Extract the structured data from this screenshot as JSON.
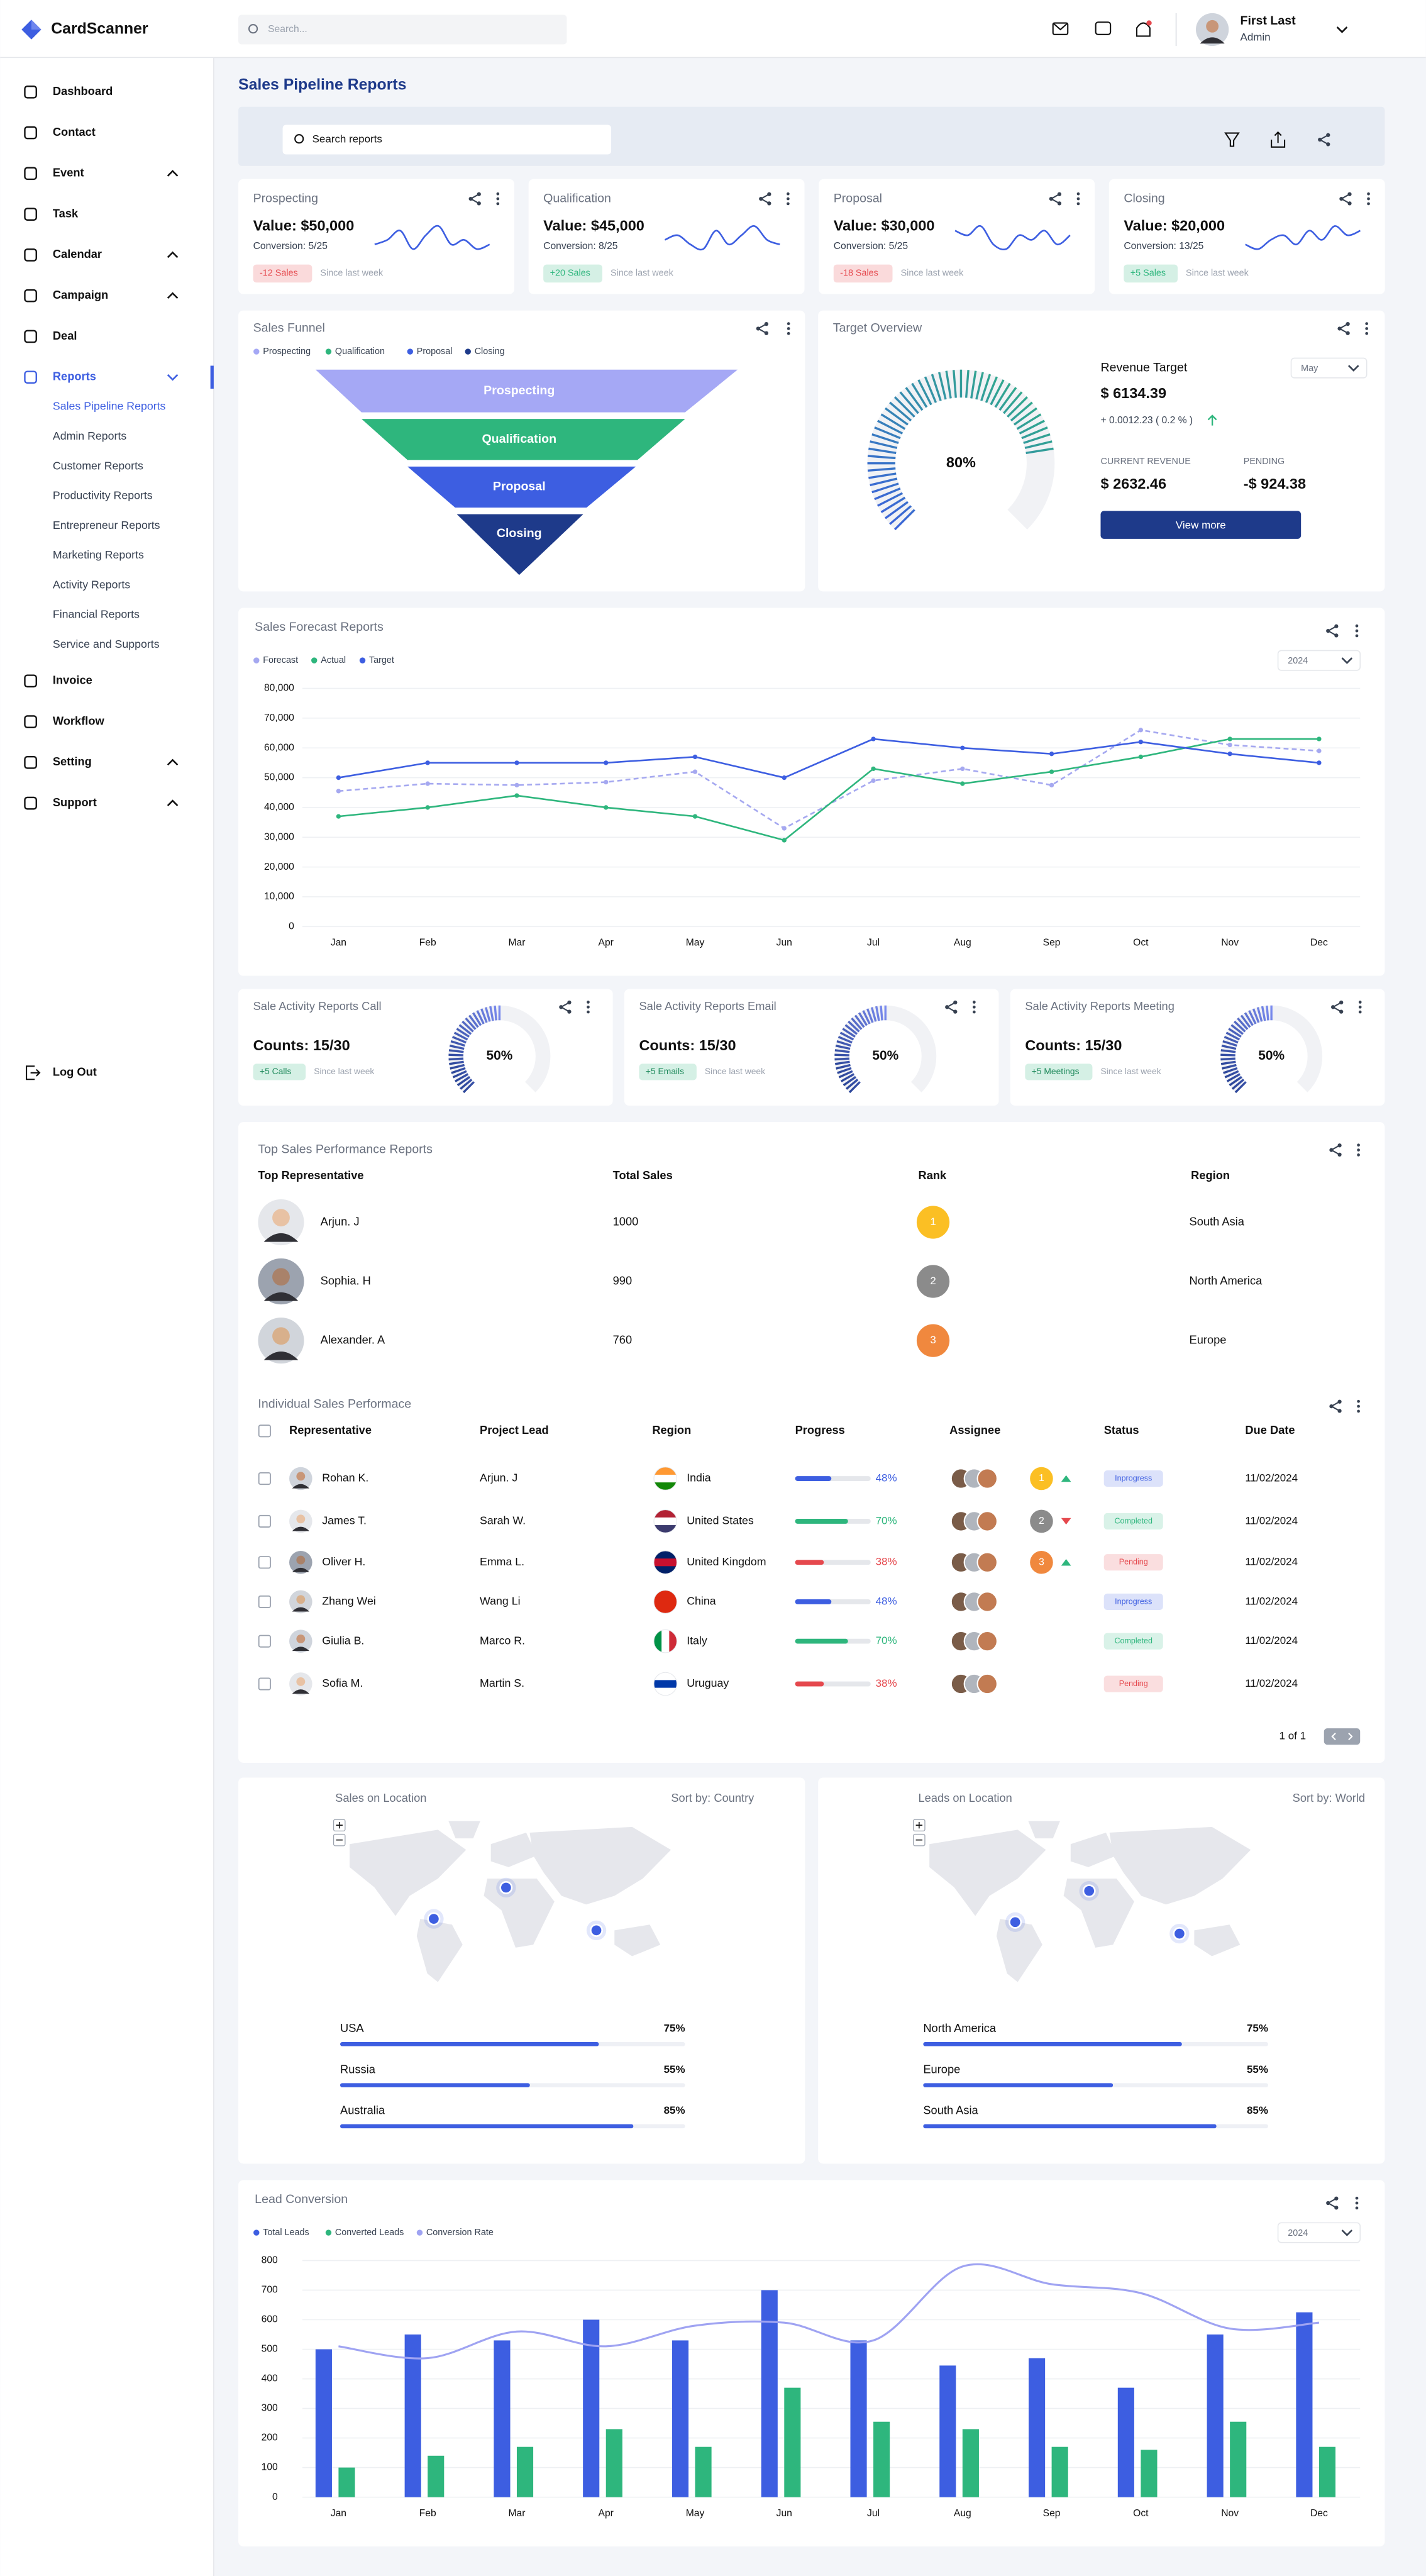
{
  "header": {
    "brand": "CardScanner",
    "search_placeholder": "Search...",
    "user_name": "First Last",
    "user_role": "Admin"
  },
  "sidebar": {
    "items": [
      {
        "label": "Dashboard"
      },
      {
        "label": "Contact"
      },
      {
        "label": "Event",
        "expandable": true
      },
      {
        "label": "Task"
      },
      {
        "label": "Calendar",
        "expandable": true
      },
      {
        "label": "Campaign",
        "expandable": true
      },
      {
        "label": "Deal"
      },
      {
        "label": "Reports",
        "expandable": true,
        "expanded": true,
        "active": true,
        "children": [
          {
            "label": "Sales Pipeline Reports",
            "active": true
          },
          {
            "label": "Admin Reports"
          },
          {
            "label": "Customer Reports"
          },
          {
            "label": "Productivity Reports"
          },
          {
            "label": "Entrepreneur Reports"
          },
          {
            "label": "Marketing Reports"
          },
          {
            "label": "Activity Reports"
          },
          {
            "label": "Financial Reports"
          },
          {
            "label": "Service and Supports"
          }
        ]
      },
      {
        "label": "Invoice"
      },
      {
        "label": "Workflow"
      },
      {
        "label": "Setting",
        "expandable": true
      },
      {
        "label": "Support",
        "expandable": true
      }
    ],
    "logout": "Log Out"
  },
  "page": {
    "title": "Sales Pipeline Reports",
    "search_placeholder": "Search reports"
  },
  "kpi_cards": [
    {
      "title": "Prospecting",
      "value": "Value: $50,000",
      "conversion": "Conversion: 5/25",
      "badge": "-12 Sales",
      "badge_color": "#e5484d",
      "note": "Since last week",
      "sparkline": [
        4,
        5,
        7,
        3,
        6,
        8,
        4,
        5,
        3,
        4
      ],
      "sparkline_ylim": [
        0,
        10
      ]
    },
    {
      "title": "Qualification",
      "value": "Value: $45,000",
      "conversion": "Conversion: 8/25",
      "badge": "+20 Sales",
      "badge_color": "#2eb67d",
      "note": "Since last week",
      "sparkline": [
        5,
        6,
        4,
        3,
        7,
        4,
        6,
        8,
        5,
        4
      ],
      "sparkline_ylim": [
        0,
        10
      ]
    },
    {
      "title": "Proposal",
      "value": "Value: $30,000",
      "conversion": "Conversion: 5/25",
      "badge": "-18 Sales",
      "badge_color": "#e5484d",
      "note": "Since last week",
      "sparkline": [
        7,
        6,
        8,
        4,
        3,
        6,
        5,
        7,
        4,
        6
      ],
      "sparkline_ylim": [
        0,
        10
      ]
    },
    {
      "title": "Closing",
      "value": "Value: $20,000",
      "conversion": "Conversion: 13/25",
      "badge": "+5 Sales",
      "badge_color": "#2eb67d",
      "note": "Since last week",
      "sparkline": [
        4,
        3,
        5,
        6,
        4,
        7,
        5,
        8,
        6,
        7
      ],
      "sparkline_ylim": [
        0,
        10
      ]
    }
  ],
  "funnel": {
    "title": "Sales Funnel",
    "stages": [
      {
        "name": "Prospecting",
        "color": "#a5a8f5"
      },
      {
        "name": "Qualification",
        "color": "#2eb67d"
      },
      {
        "name": "Proposal",
        "color": "#3d5ee1"
      },
      {
        "name": "Closing",
        "color": "#1e3a8a"
      }
    ]
  },
  "target_overview": {
    "title": "Target Overview",
    "gauge": {
      "value": 80,
      "label": "80%",
      "lim": [
        0,
        100
      ],
      "colors": [
        "#3d5ee1",
        "#2eb67d"
      ]
    },
    "revenue_target_label": "Revenue Target",
    "period": "May",
    "revenue_target": "$ 6134.39",
    "change": "+ 0.0012.23 ( 0.2 % )",
    "current_revenue_label": "CURRENT REVENUE",
    "current_revenue": "$ 2632.46",
    "pending_label": "PENDING",
    "pending": "-$ 924.38",
    "button": "View more"
  },
  "chart_data": [
    {
      "type": "line",
      "title": "Sales Forecast Reports",
      "period": "2024",
      "categories": [
        "Jan",
        "Feb",
        "Mar",
        "Apr",
        "May",
        "Jun",
        "Jul",
        "Aug",
        "Sep",
        "Oct",
        "Nov",
        "Dec"
      ],
      "series": [
        {
          "name": "Forecast",
          "color": "#a5a8f0",
          "dashed": true,
          "values": [
            45500,
            48000,
            47500,
            48500,
            52000,
            33000,
            49000,
            53000,
            47500,
            66000,
            61000,
            59000
          ]
        },
        {
          "name": "Actual",
          "color": "#2eb67d",
          "values": [
            37000,
            40000,
            44000,
            40000,
            37000,
            29000,
            53000,
            48000,
            52000,
            57000,
            63000,
            63000
          ]
        },
        {
          "name": "Target",
          "color": "#3d5ee1",
          "values": [
            50000,
            55000,
            55000,
            55000,
            57000,
            50000,
            63000,
            60000,
            58000,
            62000,
            58000,
            55000
          ]
        }
      ],
      "ylim": [
        0,
        80000
      ],
      "yticks": [
        0,
        {
          "value": 10000,
          "label": "10,000"
        },
        {
          "value": 20000,
          "label": "20,000"
        },
        {
          "value": 30000,
          "label": "30,000"
        },
        {
          "value": 40000,
          "label": "40,000"
        },
        {
          "value": 50000,
          "label": "50,000"
        },
        {
          "value": 60000,
          "label": "60,000"
        },
        {
          "value": 70000,
          "label": "70,000"
        },
        {
          "value": 80000,
          "label": "80,000"
        }
      ],
      "grid": true
    },
    {
      "type": "combo",
      "title": "Lead Conversion",
      "period": "2024",
      "categories": [
        "Jan",
        "Feb",
        "Mar",
        "Apr",
        "May",
        "Jun",
        "Jul",
        "Aug",
        "Sep",
        "Oct",
        "Nov",
        "Dec"
      ],
      "series": [
        {
          "name": "Total Leads",
          "kind": "bar",
          "color": "#3d5ee1",
          "values": [
            500,
            550,
            530,
            600,
            530,
            700,
            530,
            445,
            470,
            370,
            550,
            625
          ]
        },
        {
          "name": "Converted Leads",
          "kind": "bar",
          "color": "#2eb67d",
          "values": [
            100,
            140,
            170,
            230,
            170,
            370,
            255,
            230,
            170,
            160,
            255,
            170
          ]
        },
        {
          "name": "Conversion Rate",
          "kind": "line",
          "color": "#9fa3f2",
          "values": [
            510,
            470,
            560,
            510,
            580,
            590,
            530,
            780,
            720,
            690,
            570,
            590
          ]
        }
      ],
      "ylim": [
        0,
        800
      ],
      "yticks": [
        0,
        100,
        200,
        300,
        400,
        500,
        600,
        700,
        800
      ],
      "grid": true
    }
  ],
  "activity_cards": [
    {
      "title": "Sale Activity Reports Call",
      "counts": "Counts: 15/30",
      "badge": "+5 Calls",
      "note": "Since last week",
      "gauge": {
        "value": 50,
        "label": "50%",
        "lim": [
          0,
          100
        ],
        "colors": [
          "#1e3a8a",
          "#7b8cf0"
        ]
      }
    },
    {
      "title": "Sale Activity Reports Email",
      "counts": "Counts: 15/30",
      "badge": "+5 Emails",
      "note": "Since last week",
      "gauge": {
        "value": 50,
        "label": "50%",
        "lim": [
          0,
          100
        ],
        "colors": [
          "#1e3a8a",
          "#7b8cf0"
        ]
      }
    },
    {
      "title": "Sale Activity Reports Meeting",
      "counts": "Counts: 15/30",
      "badge": "+5 Meetings",
      "note": "Since last week",
      "gauge": {
        "value": 50,
        "label": "50%",
        "lim": [
          0,
          100
        ],
        "colors": [
          "#1e3a8a",
          "#7b8cf0"
        ]
      }
    }
  ],
  "top_sales": {
    "title": "Top Sales Performance Reports",
    "columns": [
      "Top Representative",
      "Total Sales",
      "Rank",
      "Region"
    ],
    "rows": [
      {
        "name": "Arjun. J",
        "total_sales": 1000,
        "rank": 1,
        "rank_color": "#fbbf24",
        "region": "South Asia"
      },
      {
        "name": "Sophia. H",
        "total_sales": 990,
        "rank": 2,
        "rank_color": "#8b8b8b",
        "region": "North America"
      },
      {
        "name": "Alexander. A",
        "total_sales": 760,
        "rank": 3,
        "rank_color": "#f0883e",
        "region": "Europe"
      }
    ]
  },
  "individual_sales": {
    "title": "Individual Sales Performace",
    "columns": [
      "Representative",
      "Project Lead",
      "Region",
      "Progress",
      "Assignee",
      "Status",
      "Due Date"
    ],
    "progress_lim": [
      0,
      100
    ],
    "rows": [
      {
        "representative": "Rohan K.",
        "project_lead": "Arjun. J",
        "region": "India",
        "flag_colors": [
          "#ff9933",
          "#ffffff",
          "#138808"
        ],
        "progress": {
          "value": 48,
          "label": "48%"
        },
        "color": "#3d5ee1",
        "rank": 1,
        "rank_color": "#fbbf24",
        "trend": "up",
        "status": "Inprogress",
        "due_date": "11/02/2024"
      },
      {
        "representative": "James T.",
        "project_lead": "Sarah W.",
        "region": "United States",
        "flag_colors": [
          "#b22234",
          "#ffffff",
          "#3c3b6e"
        ],
        "progress": {
          "value": 70,
          "label": "70%"
        },
        "color": "#2eb67d",
        "rank": 2,
        "rank_color": "#8b8b8b",
        "trend": "down",
        "status": "Completed",
        "due_date": "11/02/2024"
      },
      {
        "representative": "Oliver H.",
        "project_lead": "Emma L.",
        "region": "United Kingdom",
        "flag_colors": [
          "#012169",
          "#c8102e",
          "#012169"
        ],
        "progress": {
          "value": 38,
          "label": "38%"
        },
        "color": "#e5484d",
        "rank": 3,
        "rank_color": "#f0883e",
        "trend": "up",
        "status": "Pending",
        "due_date": "11/02/2024"
      },
      {
        "representative": "Zhang Wei",
        "project_lead": "Wang Li",
        "region": "China",
        "flag_colors": [
          "#de2910",
          "#de2910",
          "#de2910"
        ],
        "progress": {
          "value": 48,
          "label": "48%"
        },
        "color": "#3d5ee1",
        "status": "Inprogress",
        "due_date": "11/02/2024"
      },
      {
        "representative": "Giulia B.",
        "project_lead": "Marco R.",
        "region": "Italy",
        "flag_colors": [
          "#009246",
          "#ffffff",
          "#ce2b37"
        ],
        "flag_direction": "vertical",
        "progress": {
          "value": 70,
          "label": "70%"
        },
        "color": "#2eb67d",
        "status": "Completed",
        "due_date": "11/02/2024"
      },
      {
        "representative": "Sofia M.",
        "project_lead": "Martin S.",
        "region": "Uruguay",
        "flag_colors": [
          "#ffffff",
          "#0038a8",
          "#ffffff"
        ],
        "progress": {
          "value": 38,
          "label": "38%"
        },
        "color": "#e5484d",
        "status": "Pending",
        "due_date": "11/02/2024"
      }
    ],
    "pagination": "1 of 1"
  },
  "locations": [
    {
      "title": "Sales on Location",
      "sort": "Sort by: Country",
      "xlim": [
        0,
        100
      ],
      "items": [
        {
          "name": "USA",
          "value": 75,
          "label": "75%"
        },
        {
          "name": "Russia",
          "value": 55,
          "label": "55%"
        },
        {
          "name": "Australia",
          "value": 85,
          "label": "85%"
        }
      ]
    },
    {
      "title": "Leads on Location",
      "sort": "Sort by: World",
      "xlim": [
        0,
        100
      ],
      "items": [
        {
          "name": "North America",
          "value": 75,
          "label": "75%"
        },
        {
          "name": "Europe",
          "value": 55,
          "label": "55%"
        },
        {
          "name": "South Asia",
          "value": 85,
          "label": "85%"
        }
      ]
    }
  ]
}
